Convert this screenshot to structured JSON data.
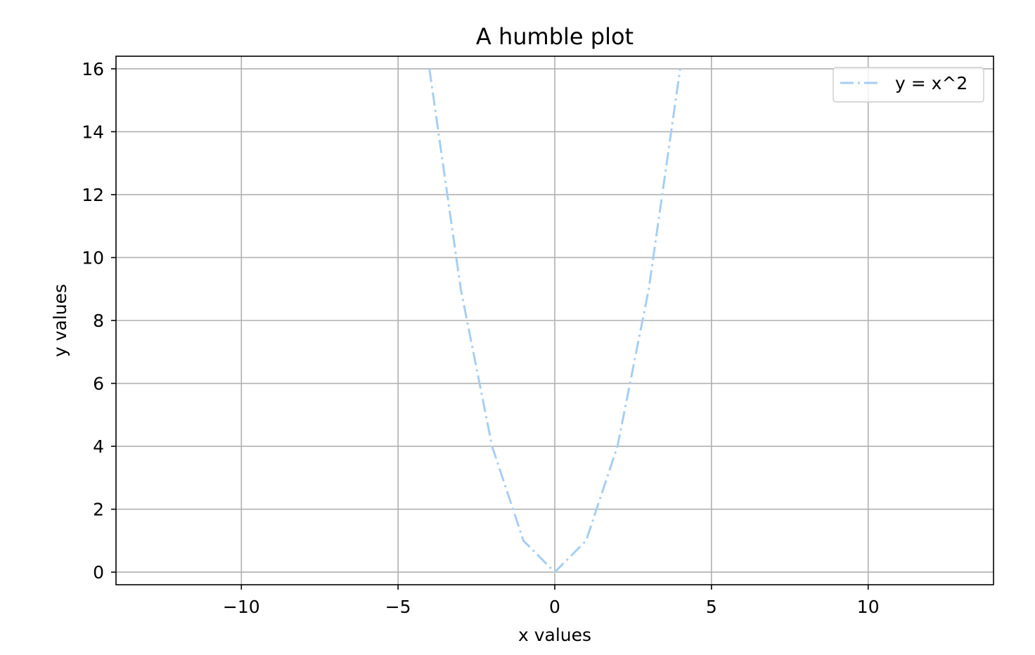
{
  "chart_data": {
    "type": "line",
    "title": "A humble plot",
    "xlabel": "x values",
    "ylabel": "y values",
    "xlim": [
      -14,
      14
    ],
    "ylim": [
      -0.4,
      16.4
    ],
    "xticks": [
      -10,
      -5,
      0,
      5,
      10
    ],
    "xtick_labels": [
      "−10",
      "−5",
      "0",
      "5",
      "10"
    ],
    "yticks": [
      0,
      2,
      4,
      6,
      8,
      10,
      12,
      14,
      16
    ],
    "ytick_labels": [
      "0",
      "2",
      "4",
      "6",
      "8",
      "10",
      "12",
      "14",
      "16"
    ],
    "grid": true,
    "legend_position": "top-right",
    "series": [
      {
        "name": "y = x^2",
        "color": "#a6cef3",
        "line_style": "dash-dot",
        "x": [
          -4,
          -3,
          -2,
          -1,
          0,
          1,
          2,
          3,
          4
        ],
        "y": [
          16,
          9,
          4,
          1,
          0,
          1,
          4,
          9,
          16
        ]
      }
    ]
  }
}
